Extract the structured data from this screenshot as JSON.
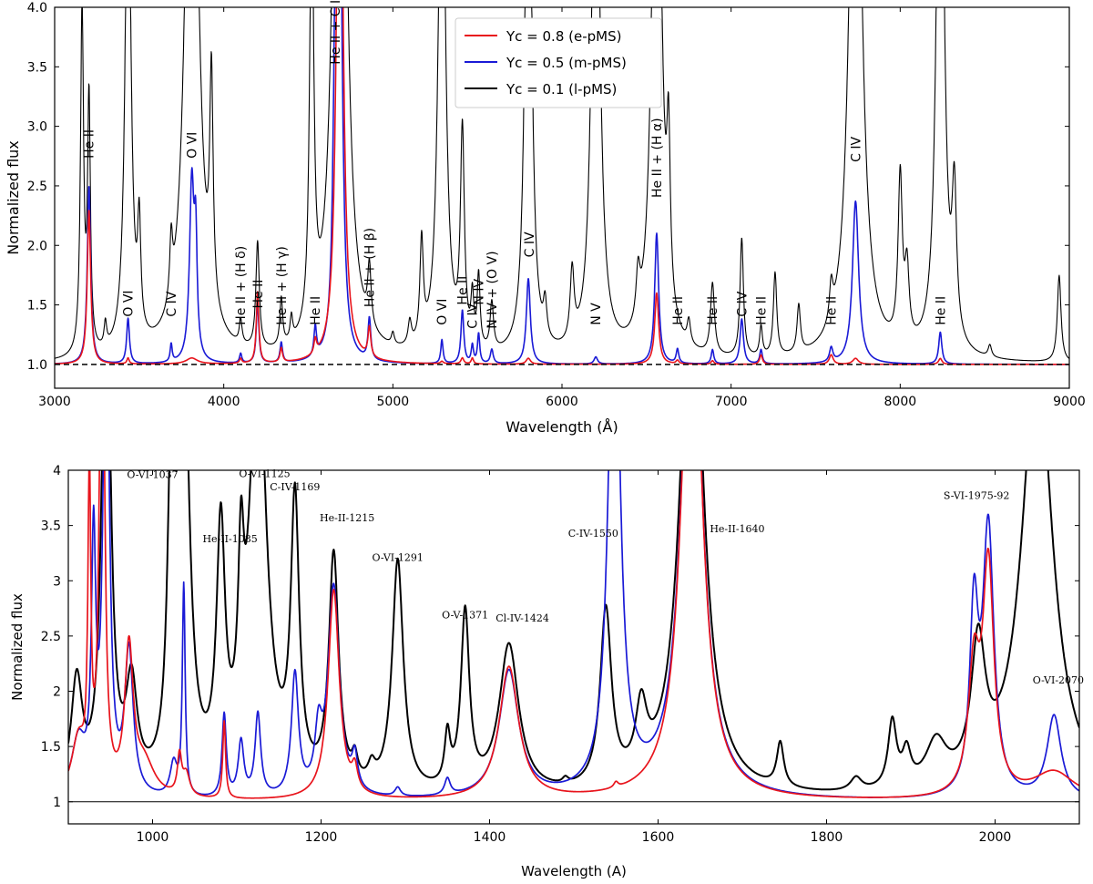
{
  "chart_data": [
    {
      "type": "line",
      "title": "",
      "xlabel": "Wavelength (Å)",
      "ylabel": "Normalized flux",
      "xlim": [
        3000,
        9000
      ],
      "ylim": [
        0.8,
        4.0
      ],
      "xticks": [
        3000,
        4000,
        5000,
        6000,
        7000,
        8000,
        9000
      ],
      "yticks": [
        1.0,
        1.5,
        2.0,
        2.5,
        3.0,
        3.5,
        4.0
      ],
      "baseline": 1.0,
      "legend": {
        "position": "top-center",
        "entries": [
          {
            "label": "Yc = 0.8 (e-pMS)",
            "color": "#e8141c"
          },
          {
            "label": "Yc = 0.5 (m-pMS)",
            "color": "#1a1ad6"
          },
          {
            "label": "Yc = 0.1 (l-pMS)",
            "color": "#000000"
          }
        ]
      },
      "annotations": [
        {
          "text": "He II",
          "x": 3203,
          "y": 2.73
        },
        {
          "text": "O VI",
          "x": 3434,
          "y": 1.4
        },
        {
          "text": "C IV",
          "x": 3689,
          "y": 1.4
        },
        {
          "text": "O VI",
          "x": 3811,
          "y": 2.73
        },
        {
          "text": "He II + (H δ)",
          "x": 4100,
          "y": 1.33
        },
        {
          "text": "He II",
          "x": 4200,
          "y": 1.47
        },
        {
          "text": "He II + (H γ)",
          "x": 4340,
          "y": 1.33
        },
        {
          "text": "He II",
          "x": 4541,
          "y": 1.33
        },
        {
          "text": "He II + C IV",
          "x": 4658,
          "y": 3.52
        },
        {
          "text": "He II + (H β)",
          "x": 4860,
          "y": 1.48
        },
        {
          "text": "O VI",
          "x": 5290,
          "y": 1.33
        },
        {
          "text": "He II",
          "x": 5411,
          "y": 1.5
        },
        {
          "text": "C IV",
          "x": 5470,
          "y": 1.3
        },
        {
          "text": "N IV",
          "x": 5507,
          "y": 1.5
        },
        {
          "text": "N IV + (O V)",
          "x": 5585,
          "y": 1.3
        },
        {
          "text": "C IV",
          "x": 5806,
          "y": 1.9
        },
        {
          "text": "N V",
          "x": 6200,
          "y": 1.33
        },
        {
          "text": "He II + (H α)",
          "x": 6560,
          "y": 2.4
        },
        {
          "text": "He II",
          "x": 6683,
          "y": 1.33
        },
        {
          "text": "He II",
          "x": 6890,
          "y": 1.33
        },
        {
          "text": "C IV",
          "x": 7063,
          "y": 1.4
        },
        {
          "text": "He II",
          "x": 7177,
          "y": 1.33
        },
        {
          "text": "He II",
          "x": 7592,
          "y": 1.33
        },
        {
          "text": "C IV",
          "x": 7736,
          "y": 2.7
        },
        {
          "text": "He II",
          "x": 8237,
          "y": 1.33
        }
      ],
      "series": [
        {
          "name": "Yc = 0.8 (e-pMS)",
          "color": "#e8141c",
          "continuum": 1.0,
          "lines": [
            [
              3203,
              1.3,
              12
            ],
            [
              3434,
              0.05,
              8
            ],
            [
              3811,
              0.05,
              40
            ],
            [
              4100,
              0.04,
              8
            ],
            [
              4200,
              0.6,
              9
            ],
            [
              4340,
              0.12,
              9
            ],
            [
              4541,
              0.12,
              9
            ],
            [
              4686,
              6.0,
              20
            ],
            [
              4861,
              0.25,
              10
            ],
            [
              5290,
              0.02,
              10
            ],
            [
              5411,
              0.05,
              10
            ],
            [
              5470,
              0.05,
              8
            ],
            [
              5801,
              0.05,
              15
            ],
            [
              6560,
              0.6,
              14
            ],
            [
              6683,
              0.03,
              10
            ],
            [
              6890,
              0.03,
              10
            ],
            [
              7177,
              0.08,
              10
            ],
            [
              7592,
              0.08,
              14
            ],
            [
              7736,
              0.05,
              20
            ],
            [
              8237,
              0.05,
              12
            ]
          ]
        },
        {
          "name": "Yc = 0.5 (m-pMS)",
          "color": "#1a1ad6",
          "continuum": 1.0,
          "lines": [
            [
              3203,
              1.5,
              12
            ],
            [
              3434,
              0.38,
              10
            ],
            [
              3689,
              0.15,
              7
            ],
            [
              3811,
              1.5,
              16
            ],
            [
              3834,
              0.9,
              10
            ],
            [
              4100,
              0.08,
              8
            ],
            [
              4200,
              0.52,
              9
            ],
            [
              4340,
              0.17,
              9
            ],
            [
              4541,
              0.25,
              9
            ],
            [
              4658,
              2.1,
              14
            ],
            [
              4686,
              4.0,
              18
            ],
            [
              4861,
              0.35,
              10
            ],
            [
              5290,
              0.2,
              8
            ],
            [
              5411,
              0.45,
              10
            ],
            [
              5470,
              0.15,
              8
            ],
            [
              5507,
              0.25,
              8
            ],
            [
              5585,
              0.12,
              10
            ],
            [
              5801,
              0.72,
              14
            ],
            [
              6200,
              0.06,
              12
            ],
            [
              6560,
              1.1,
              14
            ],
            [
              6683,
              0.12,
              9
            ],
            [
              6890,
              0.12,
              9
            ],
            [
              7063,
              0.38,
              12
            ],
            [
              7177,
              0.12,
              9
            ],
            [
              7592,
              0.12,
              12
            ],
            [
              7736,
              1.37,
              22
            ],
            [
              8237,
              0.27,
              11
            ]
          ]
        },
        {
          "name": "Yc = 0.1 (l-pMS)",
          "color": "#000000",
          "continuum": 1.0,
          "lines": [
            [
              3162,
              2.9,
              11
            ],
            [
              3203,
              2.1,
              10
            ],
            [
              3300,
              0.2,
              9
            ],
            [
              3434,
              4.5,
              20
            ],
            [
              3500,
              0.9,
              11
            ],
            [
              3689,
              0.5,
              10
            ],
            [
              3811,
              6.5,
              40
            ],
            [
              3927,
              1.9,
              12
            ],
            [
              4100,
              0.2,
              10
            ],
            [
              4200,
              0.9,
              12
            ],
            [
              4340,
              0.4,
              10
            ],
            [
              4400,
              0.2,
              9
            ],
            [
              4520,
              3.8,
              14
            ],
            [
              4686,
              9.0,
              35
            ],
            [
              4861,
              0.5,
              12
            ],
            [
              5000,
              0.1,
              10
            ],
            [
              5100,
              0.2,
              12
            ],
            [
              5170,
              0.85,
              12
            ],
            [
              5290,
              5.0,
              24
            ],
            [
              5411,
              1.8,
              14
            ],
            [
              5470,
              0.4,
              10
            ],
            [
              5507,
              0.6,
              10
            ],
            [
              5585,
              0.4,
              12
            ],
            [
              5801,
              6.0,
              20
            ],
            [
              5900,
              0.3,
              12
            ],
            [
              6060,
              0.6,
              14
            ],
            [
              6200,
              5.5,
              26
            ],
            [
              6450,
              0.4,
              14
            ],
            [
              6560,
              6.0,
              30
            ],
            [
              6630,
              1.3,
              12
            ],
            [
              6750,
              0.2,
              12
            ],
            [
              6890,
              0.6,
              14
            ],
            [
              7063,
              1.0,
              12
            ],
            [
              7177,
              0.25,
              10
            ],
            [
              7260,
              0.7,
              12
            ],
            [
              7400,
              0.4,
              12
            ],
            [
              7592,
              0.3,
              12
            ],
            [
              7736,
              6.0,
              40
            ],
            [
              8000,
              1.4,
              15
            ],
            [
              8040,
              0.6,
              15
            ],
            [
              8237,
              6.0,
              24
            ],
            [
              8320,
              1.2,
              16
            ],
            [
              8530,
              0.1,
              12
            ],
            [
              8940,
              0.73,
              13
            ]
          ]
        }
      ]
    },
    {
      "type": "line",
      "title": "",
      "xlabel": "Wavelength (A)",
      "ylabel": "Normalized flux",
      "xlim": [
        900,
        2100
      ],
      "ylim": [
        0.8,
        4.0
      ],
      "xticks": [
        1000,
        1200,
        1400,
        1600,
        1800,
        2000
      ],
      "yticks": [
        1,
        1.5,
        2,
        2.5,
        3,
        3.5,
        4
      ],
      "baseline": 1.0,
      "annotations": [
        {
          "text": "O-VI-1037",
          "x": 1000,
          "y": 3.93
        },
        {
          "text": "He-II-1085",
          "x": 1092,
          "y": 3.35
        },
        {
          "text": "O-VI-1125",
          "x": 1133,
          "y": 3.94
        },
        {
          "text": "C-IV-1169",
          "x": 1169,
          "y": 3.82
        },
        {
          "text": "He-II-1215",
          "x": 1231,
          "y": 3.54
        },
        {
          "text": "O-VI-1291",
          "x": 1291,
          "y": 3.18
        },
        {
          "text": "O-V-1371",
          "x": 1371,
          "y": 2.66
        },
        {
          "text": "Cl-IV-1424",
          "x": 1439,
          "y": 2.63
        },
        {
          "text": "C-IV-1550",
          "x": 1523,
          "y": 3.4
        },
        {
          "text": "He-II-1640",
          "x": 1694,
          "y": 3.44
        },
        {
          "text": "S-VI-1975-92",
          "x": 1978,
          "y": 3.74
        },
        {
          "text": "O-VI-2070",
          "x": 2075,
          "y": 2.07
        }
      ],
      "series": [
        {
          "name": "Yc = 0.8 (e-pMS)",
          "color": "#e8141c",
          "continuum": 1.0,
          "lines": [
            [
              912,
              0.5,
              10
            ],
            [
              925,
              2.8,
              2
            ],
            [
              940,
              6.0,
              3
            ],
            [
              972,
              1.3,
              6
            ],
            [
              990,
              0.3,
              15
            ],
            [
              1032,
              0.35,
              3
            ],
            [
              1040,
              0.2,
              5
            ],
            [
              1085,
              0.7,
              2
            ],
            [
              1215,
              1.9,
              8
            ],
            [
              1240,
              0.2,
              4
            ],
            [
              1423,
              1.2,
              14
            ],
            [
              1550,
              0.05,
              3
            ],
            [
              1640,
              5.0,
              14
            ],
            [
              1975,
              1.1,
              8
            ],
            [
              1992,
              2.05,
              8
            ],
            [
              2070,
              0.25,
              30
            ]
          ]
        },
        {
          "name": "Yc = 0.5 (m-pMS)",
          "color": "#1a1ad6",
          "continuum": 1.0,
          "lines": [
            [
              912,
              0.5,
              10
            ],
            [
              930,
              2.2,
              3
            ],
            [
              945,
              5.0,
              4
            ],
            [
              972,
              1.3,
              6
            ],
            [
              1025,
              0.3,
              5
            ],
            [
              1037,
              1.9,
              2
            ],
            [
              1085,
              0.75,
              3
            ],
            [
              1105,
              0.5,
              4
            ],
            [
              1125,
              0.75,
              4
            ],
            [
              1169,
              1.1,
              5
            ],
            [
              1197,
              0.5,
              5
            ],
            [
              1215,
              1.9,
              8
            ],
            [
              1240,
              0.3,
              4
            ],
            [
              1291,
              0.08,
              4
            ],
            [
              1350,
              0.15,
              4
            ],
            [
              1423,
              1.15,
              14
            ],
            [
              1548,
              5.0,
              8
            ],
            [
              1640,
              5.0,
              14
            ],
            [
              1975,
              1.6,
              6
            ],
            [
              1992,
              2.4,
              8
            ],
            [
              2070,
              0.75,
              10
            ]
          ]
        },
        {
          "name": "Yc = 0.1 (l-pMS)",
          "color": "#000000",
          "continuum": 1.0,
          "lines": [
            [
              910,
              1.0,
              8
            ],
            [
              945,
              5.0,
              6
            ],
            [
              975,
              0.9,
              8
            ],
            [
              1022,
              2.6,
              5
            ],
            [
              1037,
              4.0,
              8
            ],
            [
              1081,
              2.2,
              6
            ],
            [
              1105,
              1.45,
              4
            ],
            [
              1125,
              4.0,
              12
            ],
            [
              1169,
              2.5,
              6
            ],
            [
              1215,
              2.1,
              7
            ],
            [
              1240,
              0.2,
              4
            ],
            [
              1260,
              0.15,
              5
            ],
            [
              1291,
              2.1,
              8
            ],
            [
              1350,
              0.45,
              4
            ],
            [
              1371,
              1.6,
              6
            ],
            [
              1423,
              1.35,
              14
            ],
            [
              1490,
              0.05,
              4
            ],
            [
              1538,
              1.6,
              8
            ],
            [
              1580,
              0.6,
              8
            ],
            [
              1640,
              5.0,
              16
            ],
            [
              1745,
              0.4,
              5
            ],
            [
              1835,
              0.12,
              8
            ],
            [
              1878,
              0.6,
              6
            ],
            [
              1895,
              0.3,
              6
            ],
            [
              1930,
              0.4,
              15
            ],
            [
              1980,
              1.2,
              10
            ],
            [
              2050,
              4.0,
              22
            ]
          ]
        }
      ]
    }
  ]
}
